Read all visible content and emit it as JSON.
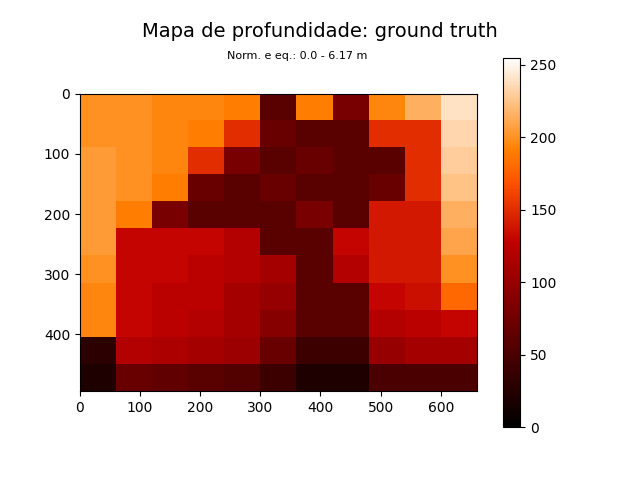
{
  "chart_data": {
    "type": "heatmap",
    "title": "Mapa de profundidade: ground truth",
    "subtitle": "Norm. e eq.: 0.0 - 6.17 m",
    "color": "gist_heat",
    "xlim": [
      0,
      660
    ],
    "ylim": [
      495,
      0
    ],
    "xticks": [
      0,
      100,
      200,
      300,
      400,
      500,
      600
    ],
    "yticks": [
      0,
      100,
      200,
      300,
      400
    ],
    "cells": [
      [
        200,
        200,
        195,
        195,
        190,
        60,
        190,
        80,
        195,
        215,
        240
      ],
      [
        200,
        200,
        195,
        190,
        150,
        70,
        60,
        60,
        150,
        150,
        235
      ],
      [
        205,
        200,
        195,
        150,
        80,
        60,
        70,
        60,
        60,
        150,
        230
      ],
      [
        205,
        200,
        190,
        70,
        60,
        70,
        60,
        60,
        70,
        150,
        225
      ],
      [
        205,
        190,
        80,
        60,
        60,
        60,
        80,
        60,
        140,
        140,
        215
      ],
      [
        205,
        130,
        130,
        130,
        120,
        60,
        60,
        130,
        140,
        140,
        210
      ],
      [
        200,
        130,
        130,
        125,
        120,
        110,
        60,
        120,
        140,
        140,
        200
      ],
      [
        195,
        130,
        125,
        125,
        110,
        100,
        60,
        60,
        130,
        135,
        180
      ],
      [
        195,
        130,
        125,
        120,
        110,
        90,
        60,
        60,
        120,
        125,
        130
      ],
      [
        30,
        120,
        115,
        110,
        105,
        70,
        40,
        40,
        100,
        110,
        110
      ],
      [
        20,
        70,
        65,
        60,
        55,
        40,
        20,
        20,
        50,
        50,
        50
      ]
    ],
    "colorbar_range": [
      0,
      255
    ],
    "colorbar_ticks": [
      0,
      50,
      100,
      150,
      200,
      250
    ]
  }
}
